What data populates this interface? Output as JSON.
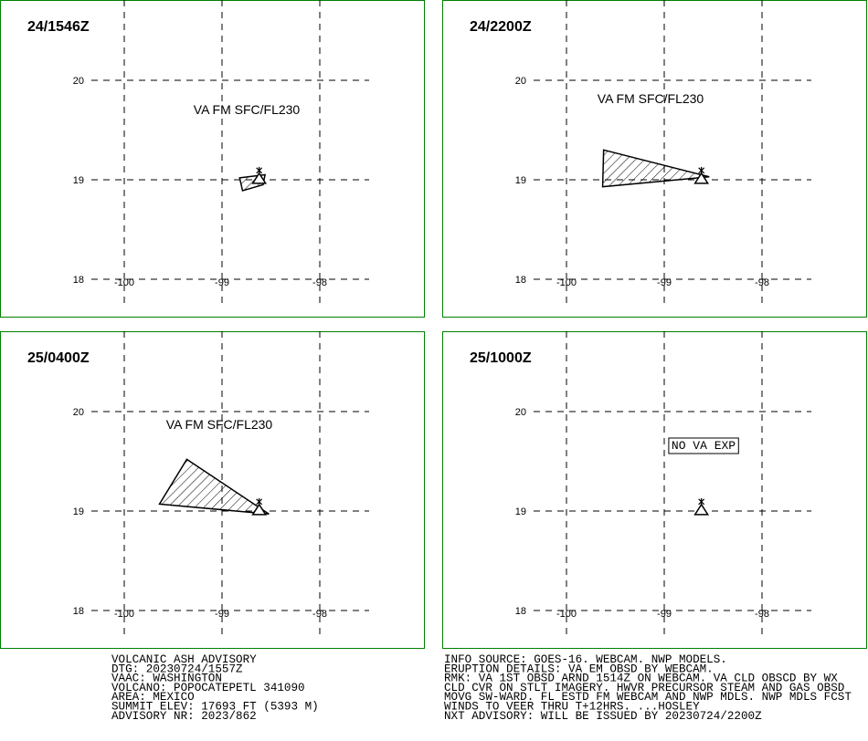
{
  "map": {
    "xticks": [
      -100,
      -99,
      -98
    ],
    "yticks": [
      20,
      19,
      18
    ],
    "volcano": {
      "lon": -98.62,
      "lat": 19.02
    },
    "panels": [
      {
        "title": "24/1546Z",
        "label": "VA FM SFC/FL230",
        "polygon": [
          [
            -98.82,
            19.02
          ],
          [
            -98.56,
            19.05
          ],
          [
            -98.58,
            18.95
          ],
          [
            -98.79,
            18.89
          ]
        ]
      },
      {
        "title": "24/2200Z",
        "label": "VA FM SFC/FL230",
        "polygon": [
          [
            -99.62,
            19.3
          ],
          [
            -98.54,
            19.03
          ],
          [
            -99.63,
            18.93
          ]
        ]
      },
      {
        "title": "25/0400Z",
        "label": "VA FM SFC/FL230",
        "polygon": [
          [
            -99.36,
            19.52
          ],
          [
            -98.52,
            18.97
          ],
          [
            -99.64,
            19.07
          ]
        ]
      },
      {
        "title": "25/1000Z",
        "label": "NO VA EXP",
        "label_boxed": true,
        "polygon": []
      }
    ]
  },
  "advisory": {
    "left": [
      "VOLCANIC ASH ADVISORY",
      "DTG: 20230724/1557Z",
      "VAAC: WASHINGTON",
      "VOLCANO: POPOCATEPETL 341090",
      "AREA: MEXICO",
      "SUMMIT ELEV: 17693 FT (5393 M)",
      "ADVISORY NR: 2023/862"
    ],
    "right": [
      "INFO SOURCE: GOES-16. WEBCAM. NWP MODELS.",
      "ERUPTION DETAILS: VA EM OBSD BY WEBCAM.",
      "RMK: VA 1ST OBSD ARND 1514Z ON WEBCAM. VA CLD OBSCD BY WX",
      "CLD CVR ON STLT IMAGERY. HWVR PRECURSOR STEAM AND GAS OBSD",
      "MOVG SW-WARD. FL ESTD FM WEBCAM AND NWP MDLS. NWP MDLS FCST",
      "WINDS TO VEER THRU T+12HRS. ...HOSLEY",
      "NXT ADVISORY: WILL BE ISSUED BY 20230724/2200Z"
    ]
  }
}
